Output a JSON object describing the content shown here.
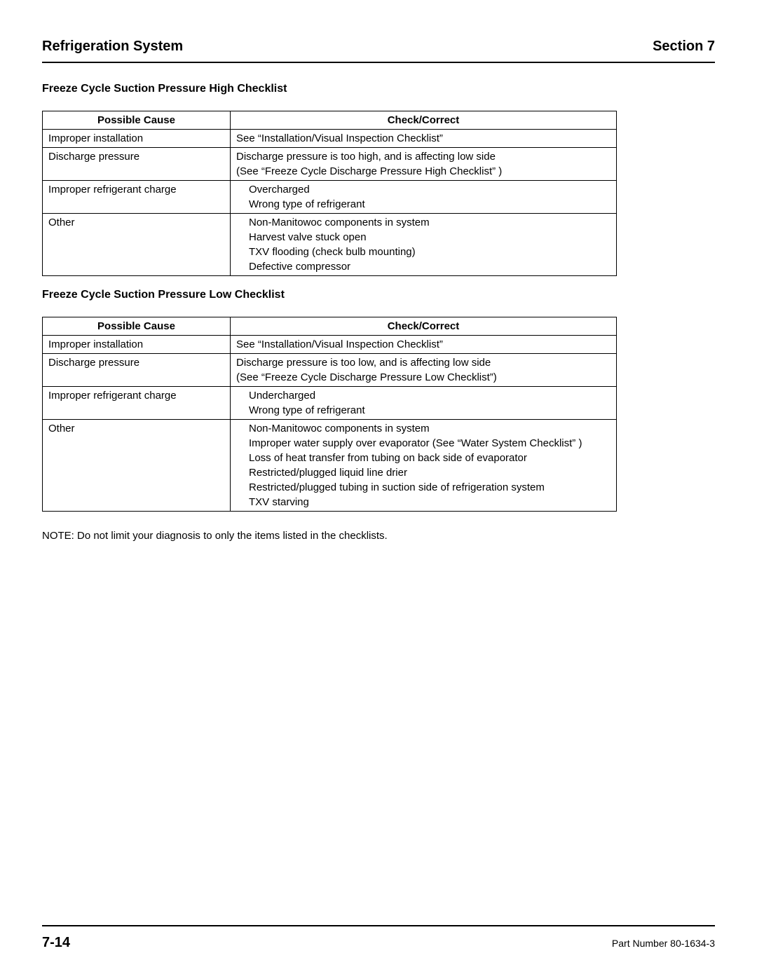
{
  "header": {
    "left": "Refrigeration System",
    "right": "Section 7"
  },
  "section1": {
    "heading": "Freeze Cycle Suction Pressure High Checklist",
    "columns": {
      "cause": "Possible Cause",
      "check": "Check/Correct"
    },
    "rows": [
      {
        "cause": "Improper installation",
        "check": [
          "See “Installation/Visual Inspection Checklist”"
        ],
        "indent": false
      },
      {
        "cause": "Discharge pressure",
        "check": [
          "Discharge pressure is too high, and is affecting low side",
          "(See “Freeze Cycle Discharge Pressure High Checklist” )"
        ],
        "indent": false
      },
      {
        "cause": "Improper refrigerant charge",
        "check": [
          "Overcharged",
          "Wrong type of refrigerant"
        ],
        "indent": true
      },
      {
        "cause": "Other",
        "check": [
          "Non-Manitowoc components in system",
          "Harvest valve stuck open",
          "TXV flooding (check bulb mounting)",
          "Defective compressor"
        ],
        "indent": true
      }
    ]
  },
  "section2": {
    "heading": "Freeze Cycle Suction Pressure Low Checklist",
    "columns": {
      "cause": "Possible Cause",
      "check": "Check/Correct"
    },
    "rows": [
      {
        "cause": "Improper installation",
        "check": [
          "See “Installation/Visual Inspection Checklist”"
        ],
        "indent": false
      },
      {
        "cause": "Discharge pressure",
        "check": [
          "Discharge pressure is too low, and is affecting low side",
          "(See “Freeze Cycle Discharge Pressure Low Checklist”)"
        ],
        "indent": false
      },
      {
        "cause": "Improper refrigerant charge",
        "check": [
          "Undercharged",
          "Wrong type of refrigerant"
        ],
        "indent": true
      },
      {
        "cause": "Other",
        "check": [
          "Non-Manitowoc components in system",
          "Improper water supply over evaporator (See “Water System Checklist” )",
          "Loss of heat transfer from tubing on back side of evaporator",
          "Restricted/plugged liquid line drier",
          "Restricted/plugged tubing in suction side of refrigeration system",
          "TXV starving"
        ],
        "indent": true
      }
    ]
  },
  "note": "NOTE: Do not limit your diagnosis to only the items listed in the checklists.",
  "footer": {
    "left": "7-14",
    "right": "Part Number 80-1634-3"
  }
}
